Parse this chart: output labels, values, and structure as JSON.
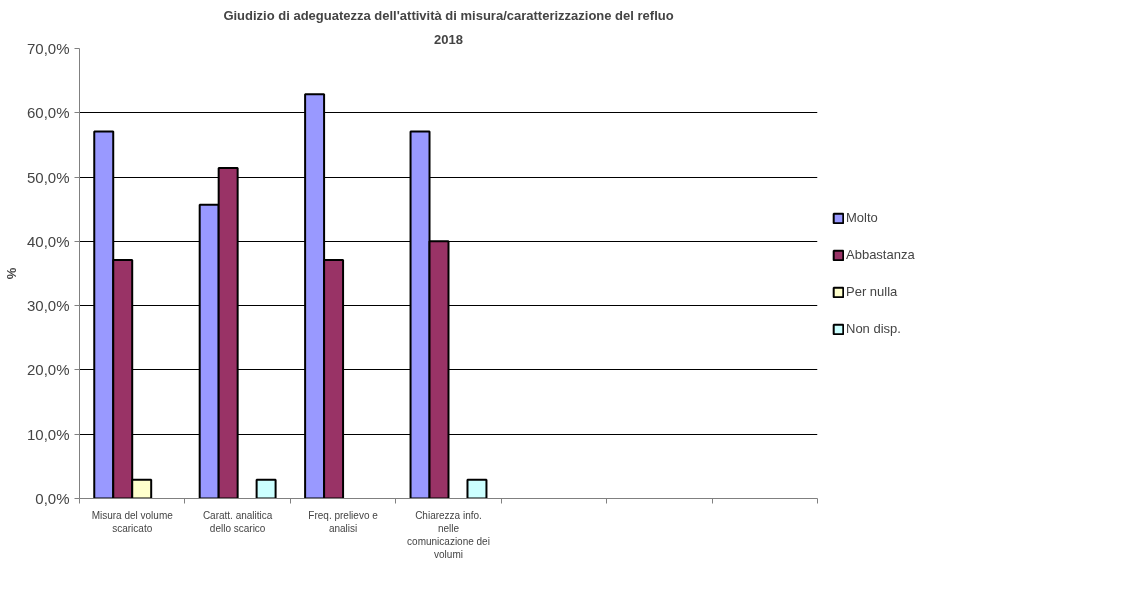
{
  "chart_data": {
    "type": "bar",
    "title": "Giudizio di adeguatezza dell'attività di misura/caratterizzazione del refluo",
    "subtitle": "2018",
    "ylabel": "%",
    "categories": [
      "Misura del volume scaricato",
      "Caratt. analitica dello scarico",
      "Freq. prelievo e analisi",
      "Chiarezza info. nelle comunicazione dei volumi",
      null,
      null,
      null
    ],
    "series": [
      {
        "name": "Molto",
        "color": "#9999ff",
        "values": [
          57.1,
          45.7,
          62.9,
          57.1,
          null,
          null,
          null
        ]
      },
      {
        "name": "Abbastanza",
        "color": "#993366",
        "values": [
          37.1,
          51.4,
          37.1,
          40.0,
          null,
          null,
          null
        ]
      },
      {
        "name": "Per nulla",
        "color": "#ffffcc",
        "values": [
          2.9,
          null,
          null,
          null,
          null,
          null,
          null
        ]
      },
      {
        "name": "Non disp.",
        "color": "#ccffff",
        "values": [
          null,
          2.9,
          null,
          2.9,
          null,
          null,
          null
        ]
      }
    ],
    "ylim": [
      0,
      70
    ],
    "yticks": [
      {
        "value": 0,
        "label": "0,0%"
      },
      {
        "value": 10,
        "label": "10,0%"
      },
      {
        "value": 20,
        "label": "20,0%"
      },
      {
        "value": 30,
        "label": "30,0%"
      },
      {
        "value": 40,
        "label": "40,0%"
      },
      {
        "value": 50,
        "label": "50,0%"
      },
      {
        "value": 60,
        "label": "60,0%"
      },
      {
        "value": 70,
        "label": "70,0%"
      }
    ],
    "grid": "y",
    "legend": "right"
  }
}
